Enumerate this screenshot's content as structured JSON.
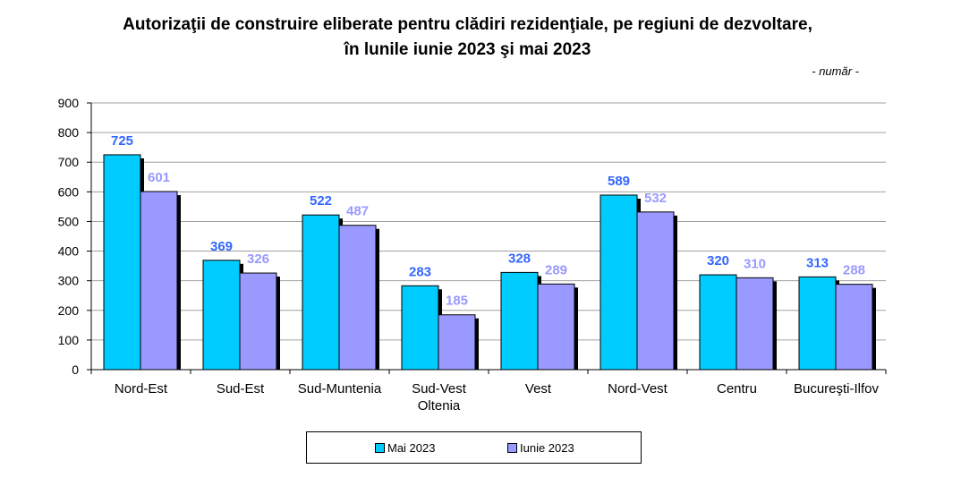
{
  "title_line1": "Autorizaţii de construire eliberate pentru clădiri rezidenţiale, pe regiuni de dezvoltare,",
  "title_line2": "în lunile iunie 2023 şi mai 2023",
  "unit": "- număr -",
  "colors": {
    "series1": "#00ccff",
    "series2": "#9999ff",
    "label1": "#3366ff",
    "label2": "#9999ff",
    "grid": "#a0a0a0",
    "shadow": "#000000"
  },
  "chart_data": {
    "type": "bar",
    "title": "Autorizaţii de construire eliberate pentru clădiri rezidenţiale, pe regiuni de dezvoltare, în lunile iunie 2023 şi mai 2023",
    "ylabel": "- număr -",
    "categories": [
      [
        "Nord-Est"
      ],
      [
        "Sud-Est"
      ],
      [
        "Sud-Muntenia"
      ],
      [
        "Sud-Vest",
        "Oltenia"
      ],
      [
        "Vest"
      ],
      [
        "Nord-Vest"
      ],
      [
        "Centru"
      ],
      [
        "Bucureşti-Ilfov"
      ]
    ],
    "series": [
      {
        "name": "Mai 2023",
        "values": [
          725,
          369,
          522,
          283,
          328,
          589,
          320,
          313
        ]
      },
      {
        "name": "Iunie 2023",
        "values": [
          601,
          326,
          487,
          185,
          289,
          532,
          310,
          288
        ]
      }
    ],
    "ylim": [
      0,
      900
    ],
    "yticks": [
      0,
      100,
      200,
      300,
      400,
      500,
      600,
      700,
      800,
      900
    ],
    "grid": true,
    "legend": "bottom"
  }
}
